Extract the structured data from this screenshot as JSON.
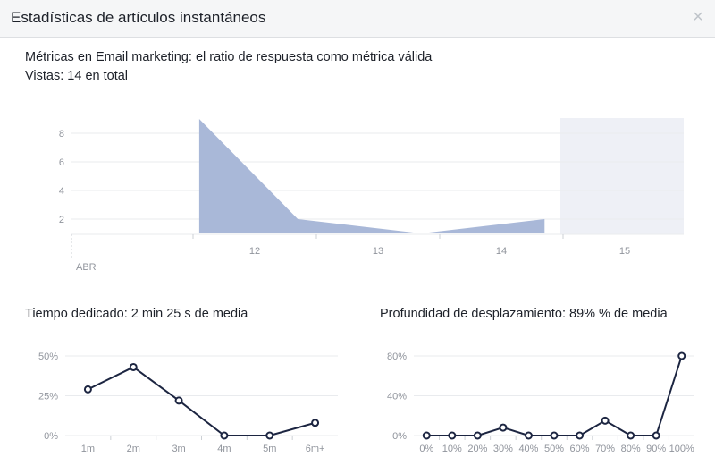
{
  "dialog": {
    "title": "Estadísticas de artículos instantáneos",
    "close_label": "×"
  },
  "article": {
    "title": "Métricas en Email marketing: el ratio de respuesta como métrica válida",
    "views_label": "Vistas: 14 en total"
  },
  "colors": {
    "views_fill": "#a9b8d8",
    "future_band": "#eef0f6",
    "line": "#1c2541",
    "grid": "#e9ebee",
    "axis_text": "#90949c"
  },
  "time_section": {
    "title": "Tiempo dedicado: 2 min 25 s de media"
  },
  "scroll_section": {
    "title": "Profundidad de desplazamiento: 89% % de media"
  },
  "chart_data": [
    {
      "type": "area",
      "x": [
        11.55,
        12.35,
        13.35,
        14.35
      ],
      "values": [
        9,
        2,
        1,
        2
      ],
      "xticks": [
        "12",
        "13",
        "14",
        "15"
      ],
      "yticks": [
        "2",
        "4",
        "6",
        "8"
      ],
      "month_label": "ABR",
      "ylim": [
        1,
        9
      ],
      "shaded_future_from": "15"
    },
    {
      "type": "line",
      "categories": [
        "1m",
        "2m",
        "3m",
        "4m",
        "5m",
        "6m+"
      ],
      "values": [
        29,
        43,
        22,
        0,
        0,
        8
      ],
      "yticks": [
        "0%",
        "25%",
        "50%"
      ],
      "ylim": [
        0,
        50
      ]
    },
    {
      "type": "line",
      "categories": [
        "0%",
        "10%",
        "20%",
        "30%",
        "40%",
        "50%",
        "60%",
        "70%",
        "80%",
        "90%",
        "100%"
      ],
      "values": [
        0,
        0,
        0,
        8,
        0,
        0,
        0,
        15,
        0,
        0,
        80
      ],
      "yticks": [
        "0%",
        "40%",
        "80%"
      ],
      "ylim": [
        0,
        80
      ]
    }
  ]
}
